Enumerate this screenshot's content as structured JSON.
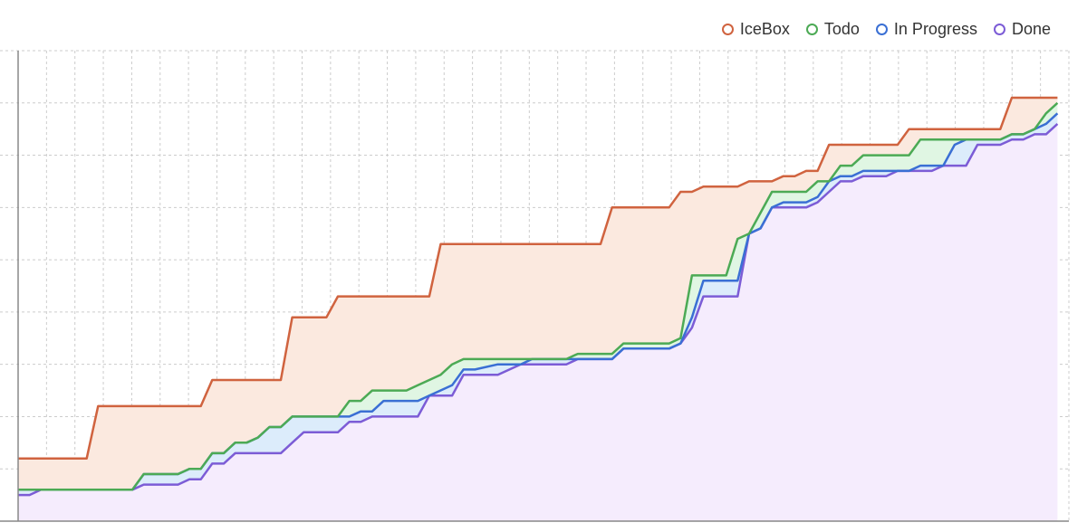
{
  "colors": {
    "icebox": "#d0633f",
    "todo": "#4caa55",
    "in_progress": "#3a6fd4",
    "done": "#7c5cd6",
    "icebox_fill": "#fbe9df",
    "todo_fill": "#e0f6e3",
    "in_progress_fill": "#dcecfb",
    "done_fill": "#f5ecfd",
    "grid": "#cccccc",
    "axis": "#888888"
  },
  "legend": {
    "icebox": "IceBox",
    "todo": "Todo",
    "in_progress": "In Progress",
    "done": "Done"
  },
  "chart_data": {
    "type": "area",
    "stacked": "cumulative flow",
    "grid": true,
    "legend_position": "top-right",
    "title": "",
    "xlabel": "",
    "ylabel": "",
    "xlim": [
      0,
      92
    ],
    "ylim": [
      0,
      9
    ],
    "x_grid_count": 37,
    "y_grid_count": 9,
    "series": [
      {
        "name": "IceBox",
        "key": "icebox",
        "points": [
          [
            0,
            1.2
          ],
          [
            6,
            1.2
          ],
          [
            7,
            2.2
          ],
          [
            16,
            2.2
          ],
          [
            17,
            2.7
          ],
          [
            23,
            2.7
          ],
          [
            24,
            3.9
          ],
          [
            27,
            3.9
          ],
          [
            28,
            4.3
          ],
          [
            36,
            4.3
          ],
          [
            37,
            5.3
          ],
          [
            51,
            5.3
          ],
          [
            52,
            6.0
          ],
          [
            57,
            6.0
          ],
          [
            58,
            6.3
          ],
          [
            59,
            6.3
          ],
          [
            60,
            6.4
          ],
          [
            63,
            6.4
          ],
          [
            64,
            6.5
          ],
          [
            66,
            6.5
          ],
          [
            67,
            6.6
          ],
          [
            68,
            6.6
          ],
          [
            69,
            6.7
          ],
          [
            70,
            6.7
          ],
          [
            71,
            7.2
          ],
          [
            77,
            7.2
          ],
          [
            78,
            7.5
          ],
          [
            86,
            7.5
          ],
          [
            87,
            8.1
          ],
          [
            91,
            8.1
          ]
        ]
      },
      {
        "name": "Todo",
        "key": "todo",
        "points": [
          [
            0,
            0.6
          ],
          [
            10,
            0.6
          ],
          [
            11,
            0.9
          ],
          [
            14,
            0.9
          ],
          [
            15,
            1.0
          ],
          [
            16,
            1.0
          ],
          [
            17,
            1.3
          ],
          [
            18,
            1.3
          ],
          [
            19,
            1.5
          ],
          [
            20,
            1.5
          ],
          [
            21,
            1.6
          ],
          [
            22,
            1.8
          ],
          [
            23,
            1.8
          ],
          [
            24,
            2.0
          ],
          [
            28,
            2.0
          ],
          [
            29,
            2.3
          ],
          [
            30,
            2.3
          ],
          [
            31,
            2.5
          ],
          [
            34,
            2.5
          ],
          [
            35,
            2.6
          ],
          [
            37,
            2.8
          ],
          [
            38,
            3.0
          ],
          [
            39,
            3.1
          ],
          [
            48,
            3.1
          ],
          [
            49,
            3.2
          ],
          [
            52,
            3.2
          ],
          [
            53,
            3.4
          ],
          [
            57,
            3.4
          ],
          [
            58,
            3.5
          ],
          [
            59,
            4.7
          ],
          [
            62,
            4.7
          ],
          [
            63,
            5.4
          ],
          [
            64,
            5.5
          ],
          [
            65,
            5.9
          ],
          [
            66,
            6.3
          ],
          [
            69,
            6.3
          ],
          [
            70,
            6.5
          ],
          [
            71,
            6.5
          ],
          [
            72,
            6.8
          ],
          [
            73,
            6.8
          ],
          [
            74,
            7.0
          ],
          [
            78,
            7.0
          ],
          [
            79,
            7.3
          ],
          [
            86,
            7.3
          ],
          [
            87,
            7.4
          ],
          [
            88,
            7.4
          ],
          [
            89,
            7.5
          ],
          [
            90,
            7.8
          ],
          [
            91,
            8.0
          ]
        ]
      },
      {
        "name": "In Progress",
        "key": "in_progress",
        "points": [
          [
            0,
            0.6
          ],
          [
            10,
            0.6
          ],
          [
            11,
            0.9
          ],
          [
            14,
            0.9
          ],
          [
            15,
            1.0
          ],
          [
            16,
            1.0
          ],
          [
            17,
            1.3
          ],
          [
            18,
            1.3
          ],
          [
            19,
            1.5
          ],
          [
            20,
            1.5
          ],
          [
            21,
            1.6
          ],
          [
            22,
            1.8
          ],
          [
            23,
            1.8
          ],
          [
            24,
            2.0
          ],
          [
            29,
            2.0
          ],
          [
            30,
            2.1
          ],
          [
            31,
            2.1
          ],
          [
            32,
            2.3
          ],
          [
            35,
            2.3
          ],
          [
            36,
            2.4
          ],
          [
            38,
            2.6
          ],
          [
            39,
            2.9
          ],
          [
            40,
            2.9
          ],
          [
            42,
            3.0
          ],
          [
            44,
            3.0
          ],
          [
            45,
            3.1
          ],
          [
            52,
            3.1
          ],
          [
            53,
            3.3
          ],
          [
            57,
            3.3
          ],
          [
            58,
            3.4
          ],
          [
            59,
            3.9
          ],
          [
            60,
            4.6
          ],
          [
            63,
            4.6
          ],
          [
            64,
            5.5
          ],
          [
            65,
            5.6
          ],
          [
            66,
            6.0
          ],
          [
            67,
            6.1
          ],
          [
            69,
            6.1
          ],
          [
            70,
            6.2
          ],
          [
            71,
            6.5
          ],
          [
            72,
            6.6
          ],
          [
            73,
            6.6
          ],
          [
            74,
            6.7
          ],
          [
            78,
            6.7
          ],
          [
            79,
            6.8
          ],
          [
            81,
            6.8
          ],
          [
            82,
            7.2
          ],
          [
            83,
            7.3
          ],
          [
            86,
            7.3
          ],
          [
            87,
            7.4
          ],
          [
            88,
            7.4
          ],
          [
            89,
            7.5
          ],
          [
            90,
            7.6
          ],
          [
            91,
            7.8
          ]
        ]
      },
      {
        "name": "Done",
        "key": "done",
        "points": [
          [
            0,
            0.5
          ],
          [
            1,
            0.5
          ],
          [
            2,
            0.6
          ],
          [
            10,
            0.6
          ],
          [
            11,
            0.7
          ],
          [
            14,
            0.7
          ],
          [
            15,
            0.8
          ],
          [
            16,
            0.8
          ],
          [
            17,
            1.1
          ],
          [
            18,
            1.1
          ],
          [
            19,
            1.3
          ],
          [
            23,
            1.3
          ],
          [
            24,
            1.5
          ],
          [
            25,
            1.7
          ],
          [
            28,
            1.7
          ],
          [
            29,
            1.9
          ],
          [
            30,
            1.9
          ],
          [
            31,
            2.0
          ],
          [
            35,
            2.0
          ],
          [
            36,
            2.4
          ],
          [
            38,
            2.4
          ],
          [
            39,
            2.8
          ],
          [
            42,
            2.8
          ],
          [
            44,
            3.0
          ],
          [
            48,
            3.0
          ],
          [
            49,
            3.1
          ],
          [
            52,
            3.1
          ],
          [
            53,
            3.3
          ],
          [
            57,
            3.3
          ],
          [
            58,
            3.4
          ],
          [
            59,
            3.7
          ],
          [
            60,
            4.3
          ],
          [
            63,
            4.3
          ],
          [
            64,
            5.5
          ],
          [
            65,
            5.6
          ],
          [
            66,
            6.0
          ],
          [
            69,
            6.0
          ],
          [
            70,
            6.1
          ],
          [
            71,
            6.3
          ],
          [
            72,
            6.5
          ],
          [
            73,
            6.5
          ],
          [
            74,
            6.6
          ],
          [
            76,
            6.6
          ],
          [
            77,
            6.7
          ],
          [
            80,
            6.7
          ],
          [
            81,
            6.8
          ],
          [
            83,
            6.8
          ],
          [
            84,
            7.2
          ],
          [
            86,
            7.2
          ],
          [
            87,
            7.3
          ],
          [
            88,
            7.3
          ],
          [
            89,
            7.4
          ],
          [
            90,
            7.4
          ],
          [
            91,
            7.6
          ]
        ]
      }
    ]
  }
}
